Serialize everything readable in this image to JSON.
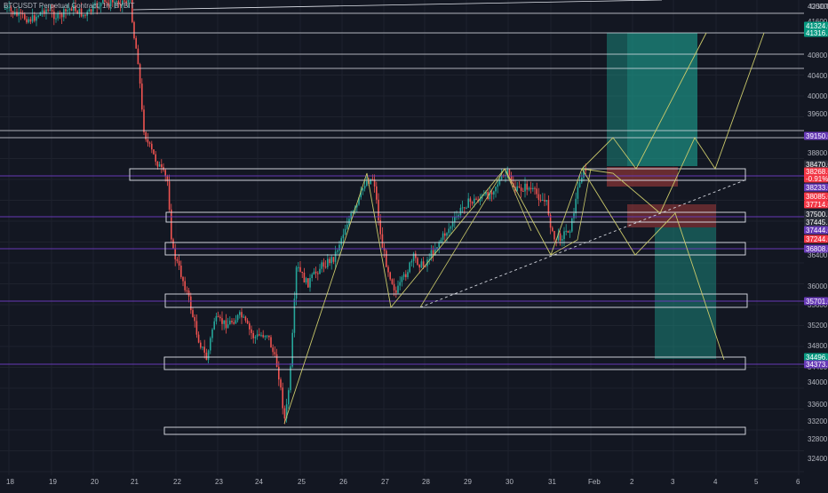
{
  "header": {
    "symbol_title": "BTCUSDT Perpetual Contract, 1h, BYBIT",
    "currency": "USDT"
  },
  "colors": {
    "background": "#131722",
    "grid": "#1e222d",
    "candle_up": "#26a69a",
    "candle_down": "#ef5350",
    "zone_line": "#e0e3eb",
    "purple_line": "#673ab7",
    "yellow_path": "#c9c86a",
    "dotted_trend": "#d1d4dc",
    "long_target": "#1d9e8e",
    "short_stop": "#a23b3b"
  },
  "y_axis": {
    "ticks": [
      "42000.0",
      "41600.0",
      "40800.0",
      "40400.0",
      "40000.0",
      "39600.0",
      "38800.0",
      "38000.0",
      "36400.0",
      "36000.0",
      "35600.0",
      "35200.0",
      "34800.0",
      "34400.0",
      "34000.0",
      "33600.0",
      "33200.0",
      "32800.0",
      "32400.0"
    ],
    "tags": [
      {
        "label": "41324.0",
        "color": "#089981"
      },
      {
        "label": "41316.5",
        "color": "#089981"
      },
      {
        "label": "39150.0",
        "color": "#673ab7"
      },
      {
        "label": "38470.0",
        "color": "#2a2e39"
      },
      {
        "label": "38268.0",
        "color": "#f23645"
      },
      {
        "label": "-0.91%",
        "color": "#f23645"
      },
      {
        "label": "38233.0",
        "color": "#673ab7"
      },
      {
        "label": "38085.0",
        "color": "#f23645"
      },
      {
        "label": "37714.0",
        "color": "#f23645"
      },
      {
        "label": "37500.5",
        "color": "#2a2e39"
      },
      {
        "label": "37445.5",
        "color": "#2a2e39"
      },
      {
        "label": "37444.0",
        "color": "#673ab7"
      },
      {
        "label": "37244.0",
        "color": "#f23645"
      },
      {
        "label": "36808.0",
        "color": "#673ab7"
      },
      {
        "label": "35701.0",
        "color": "#673ab7"
      },
      {
        "label": "34496.5",
        "color": "#089981"
      },
      {
        "label": "34373.5",
        "color": "#673ab7"
      }
    ]
  },
  "x_axis": {
    "ticks": [
      "18",
      "19",
      "20",
      "21",
      "22",
      "23",
      "24",
      "25",
      "26",
      "27",
      "28",
      "29",
      "30",
      "31",
      "Feb",
      "2",
      "3",
      "4",
      "5",
      "6"
    ]
  }
}
